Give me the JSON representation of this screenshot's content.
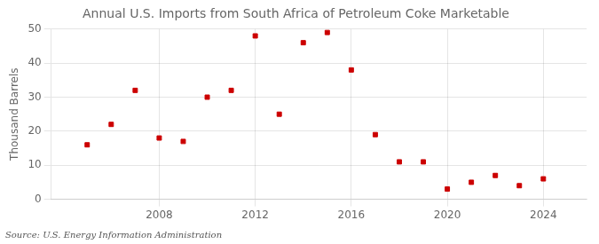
{
  "chart_data": {
    "type": "scatter",
    "title": "Annual U.S. Imports from South Africa of Petroleum Coke Marketable",
    "y_label": "Thousand Barrels",
    "annotation": "Source: U.S. Energy Information Administration",
    "x": [
      2005,
      2006,
      2007,
      2008,
      2009,
      2010,
      2011,
      2012,
      2013,
      2014,
      2015,
      2016,
      2017,
      2018,
      2019,
      2020,
      2021,
      2022,
      2023,
      2024
    ],
    "values": [
      16,
      22,
      32,
      18,
      17,
      30,
      32,
      48,
      25,
      46,
      49,
      38,
      19,
      11,
      11,
      3,
      5,
      7,
      4,
      6
    ],
    "color": "#cc0000",
    "marker": "square",
    "xlim": [
      2003.5,
      2025.8
    ],
    "xticks": [
      2008,
      2012,
      2016,
      2020,
      2024
    ],
    "ylim": [
      0,
      50
    ],
    "yticks": [
      0,
      10,
      20,
      30,
      40,
      50
    ],
    "grid": true
  }
}
